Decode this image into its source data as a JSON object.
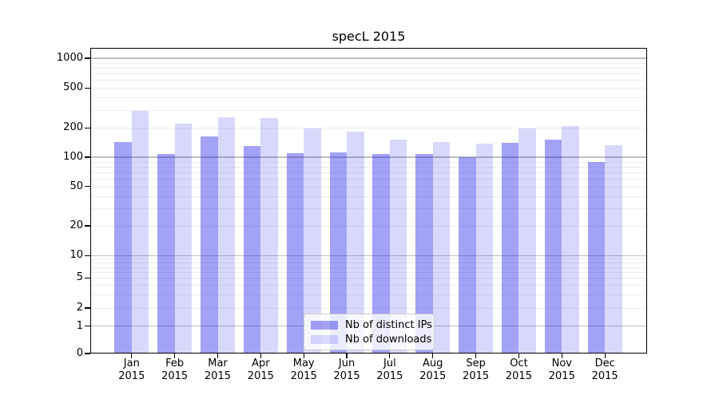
{
  "title": "specL 2015",
  "chart_data": {
    "type": "bar",
    "title": "specL 2015",
    "categories": [
      "Jan",
      "Feb",
      "Mar",
      "Apr",
      "May",
      "Jun",
      "Jul",
      "Aug",
      "Sep",
      "Oct",
      "Nov",
      "Dec"
    ],
    "x_year_label": "2015",
    "series": [
      {
        "name": "Nb of distinct IPs",
        "color": "rgba(10,10,235,0.38)",
        "values": [
          142,
          108,
          164,
          130,
          109,
          112,
          107,
          107,
          100,
          141,
          151,
          89
        ]
      },
      {
        "name": "Nb of downloads",
        "color": "rgba(10,10,235,0.16)",
        "values": [
          297,
          222,
          254,
          249,
          197,
          182,
          151,
          142,
          138,
          196,
          208,
          132
        ]
      }
    ],
    "yscale": "symlog",
    "yticks": [
      0,
      1,
      2,
      5,
      10,
      20,
      50,
      100,
      200,
      500,
      1000
    ],
    "ylim": [
      0,
      1275
    ],
    "grid": {
      "orientation": "horizontal",
      "major_color": "#bfbfbf",
      "minor_color": "#ededed"
    },
    "legend_position": "lower-center"
  }
}
